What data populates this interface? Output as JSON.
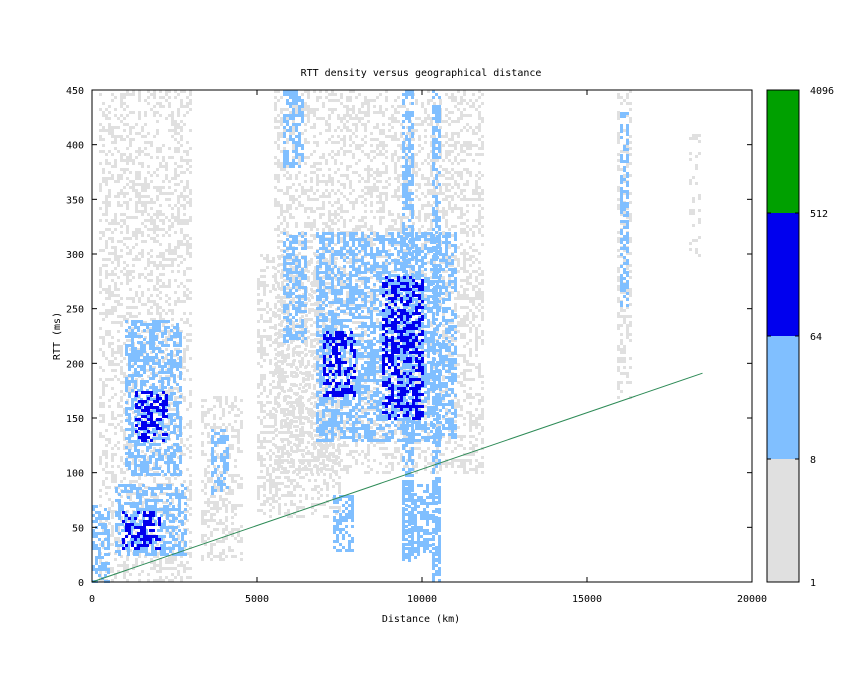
{
  "chart_data": {
    "type": "heatmap",
    "title": "RTT density versus geographical distance",
    "xlabel": "Distance (km)",
    "ylabel": "RTT (ms)",
    "xlim": [
      0,
      20000
    ],
    "ylim": [
      0,
      450
    ],
    "x_ticks": [
      "0",
      "5000",
      "10000",
      "15000",
      "20000"
    ],
    "y_ticks": [
      "0",
      "50",
      "100",
      "150",
      "200",
      "250",
      "300",
      "350",
      "400",
      "450"
    ],
    "grid": false,
    "colorbar": {
      "scale": "log2",
      "range": [
        1,
        4096
      ],
      "tick_labels": [
        "1",
        "8",
        "64",
        "512",
        "4096"
      ],
      "bands": [
        {
          "from": 1,
          "to": 8,
          "color": "#e0e0e0"
        },
        {
          "from": 8,
          "to": 64,
          "color": "#80bfff"
        },
        {
          "from": 64,
          "to": 512,
          "color": "#0000ee"
        },
        {
          "from": 512,
          "to": 4096,
          "color": "#00a000"
        }
      ]
    },
    "reference_line": {
      "color": "#2e8b57",
      "points": [
        [
          0,
          0
        ],
        [
          18500,
          191
        ]
      ]
    },
    "density_regions": [
      {
        "x": [
          0,
          500
        ],
        "y": [
          0,
          70
        ],
        "level": "light_blue"
      },
      {
        "x": [
          700,
          2800
        ],
        "y": [
          25,
          90
        ],
        "level": "light_blue"
      },
      {
        "x": [
          900,
          2000
        ],
        "y": [
          30,
          65
        ],
        "level": "blue"
      },
      {
        "x": [
          1000,
          2700
        ],
        "y": [
          100,
          240
        ],
        "level": "light_blue"
      },
      {
        "x": [
          1300,
          2300
        ],
        "y": [
          130,
          175
        ],
        "level": "blue"
      },
      {
        "x": [
          200,
          3000
        ],
        "y": [
          0,
          450
        ],
        "level": "light_gray"
      },
      {
        "x": [
          3300,
          4500
        ],
        "y": [
          20,
          170
        ],
        "level": "light_gray"
      },
      {
        "x": [
          3600,
          4100
        ],
        "y": [
          80,
          140
        ],
        "level": "light_blue"
      },
      {
        "x": [
          5000,
          7500
        ],
        "y": [
          60,
          300
        ],
        "level": "light_gray"
      },
      {
        "x": [
          5800,
          6400
        ],
        "y": [
          380,
          450
        ],
        "level": "light_blue"
      },
      {
        "x": [
          5800,
          6500
        ],
        "y": [
          220,
          320
        ],
        "level": "light_blue"
      },
      {
        "x": [
          5500,
          11800
        ],
        "y": [
          100,
          450
        ],
        "level": "light_gray"
      },
      {
        "x": [
          6800,
          11000
        ],
        "y": [
          130,
          320
        ],
        "level": "light_blue"
      },
      {
        "x": [
          7000,
          8000
        ],
        "y": [
          170,
          230
        ],
        "level": "blue"
      },
      {
        "x": [
          8800,
          10000
        ],
        "y": [
          150,
          280
        ],
        "level": "blue"
      },
      {
        "x": [
          7300,
          7900
        ],
        "y": [
          30,
          80
        ],
        "level": "light_blue"
      },
      {
        "x": [
          9400,
          10500
        ],
        "y": [
          20,
          90
        ],
        "level": "light_blue"
      },
      {
        "x": [
          10300,
          10500
        ],
        "y": [
          0,
          450
        ],
        "level": "light_blue"
      },
      {
        "x": [
          9400,
          9700
        ],
        "y": [
          20,
          450
        ],
        "level": "light_blue"
      },
      {
        "x": [
          15900,
          16300
        ],
        "y": [
          170,
          450
        ],
        "level": "light_gray"
      },
      {
        "x": [
          16000,
          16200
        ],
        "y": [
          250,
          430
        ],
        "level": "light_blue"
      },
      {
        "x": [
          18100,
          18400
        ],
        "y": [
          300,
          410
        ],
        "level": "light_gray"
      }
    ]
  }
}
